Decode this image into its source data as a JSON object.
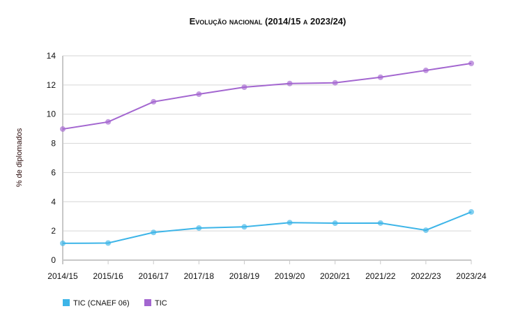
{
  "chart_data": {
    "type": "line",
    "title": "Evolução nacional (2014/15 a 2023/24)",
    "xlabel": "",
    "ylabel": "% de diplomados",
    "ylim": [
      0,
      14
    ],
    "yticks": [
      0,
      2,
      4,
      6,
      8,
      10,
      12,
      14
    ],
    "grid": true,
    "legend": "bottom-left",
    "categories": [
      "2014/15",
      "2015/16",
      "2016/17",
      "2017/18",
      "2018/19",
      "2019/20",
      "2020/21",
      "2021/22",
      "2022/23",
      "2023/24"
    ],
    "series": [
      {
        "name": "TIC (CNAEF 06)",
        "color": "#3db5e8",
        "values": [
          1.15,
          1.17,
          1.9,
          2.2,
          2.28,
          2.57,
          2.53,
          2.54,
          2.05,
          3.3
        ]
      },
      {
        "name": "TIC",
        "color": "#a366d0",
        "values": [
          8.98,
          9.47,
          10.85,
          11.37,
          11.85,
          12.1,
          12.15,
          12.53,
          13.0,
          13.48
        ]
      }
    ]
  }
}
